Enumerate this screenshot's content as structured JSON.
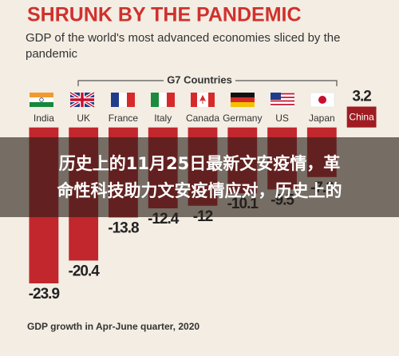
{
  "chart_data": {
    "type": "bar",
    "title": "SHRUNK BY THE PANDEMIC",
    "subtitle": "GDP of the world's most advanced economies sliced by the pandemic",
    "group_label": "G7 Countries",
    "note": "GDP growth in Apr-June quarter, 2020",
    "categories": [
      "India",
      "UK",
      "France",
      "Italy",
      "Canada",
      "Germany",
      "US",
      "Japan",
      "China"
    ],
    "values": [
      -23.9,
      -20.4,
      -13.8,
      -12.4,
      -12,
      -10.1,
      -9.5,
      -7.6,
      3.2
    ],
    "colors": [
      "#c1272d",
      "#c1272d",
      "#c1272d",
      "#c1272d",
      "#c1272d",
      "#c1272d",
      "#c1272d",
      "#c1272d",
      "#9e1c22"
    ],
    "ylim": [
      -25,
      4
    ]
  },
  "overlay": {
    "lines": [
      "历史上的11月25日最新文安疫情，革",
      "命性科技助力文安疫情应对，历史上的"
    ]
  }
}
